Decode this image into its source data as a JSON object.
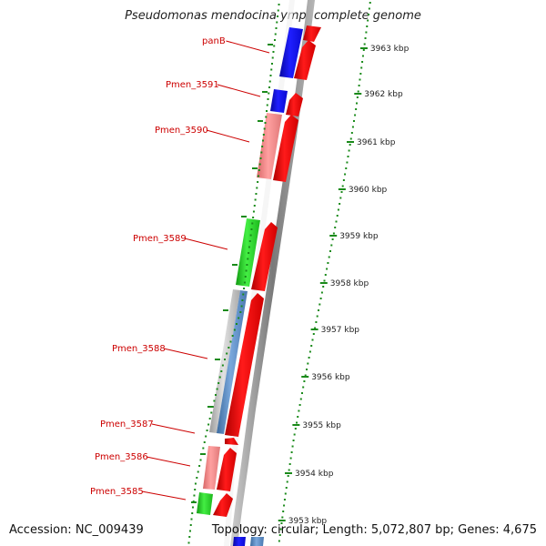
{
  "title": "Pseudomonas mendocina ymp, complete genome",
  "accession": "Accession: NC_009439",
  "summary": "Topology: circular; Length: 5,072,807 bp; Genes: 4,675",
  "colors": {
    "blue": "#1010e0",
    "red": "#ee0a0a",
    "pink": "#f08a8a",
    "green": "#22cc22",
    "steel": "#5a8ac0",
    "grey": "#b8b8b8",
    "backbone": "#8a8a8a",
    "tick": "#1a8a1a",
    "label": "#cc0000"
  },
  "kbp_labels": [
    "3963 kbp",
    "3962 kbp",
    "3961 kbp",
    "3960 kbp",
    "3959 kbp",
    "3958 kbp",
    "3957 kbp",
    "3956 kbp",
    "3955 kbp",
    "3954 kbp",
    "3953 kbp"
  ],
  "genes": [
    {
      "name": "panB",
      "color": "blue",
      "strand": "reverse"
    },
    {
      "name": "Pmen_3591",
      "color": "blue",
      "strand": "reverse"
    },
    {
      "name": "Pmen_3590",
      "color": "pink",
      "strand": "reverse"
    },
    {
      "name": "Pmen_3589",
      "color": "green",
      "strand": "reverse"
    },
    {
      "name": "Pmen_3588",
      "color": "grey_steel",
      "strand": "reverse"
    },
    {
      "name": "Pmen_3587",
      "color": "grey",
      "strand": "reverse"
    },
    {
      "name": "Pmen_3586",
      "color": "pink",
      "strand": "reverse"
    },
    {
      "name": "Pmen_3585",
      "color": "green",
      "strand": "reverse"
    }
  ]
}
